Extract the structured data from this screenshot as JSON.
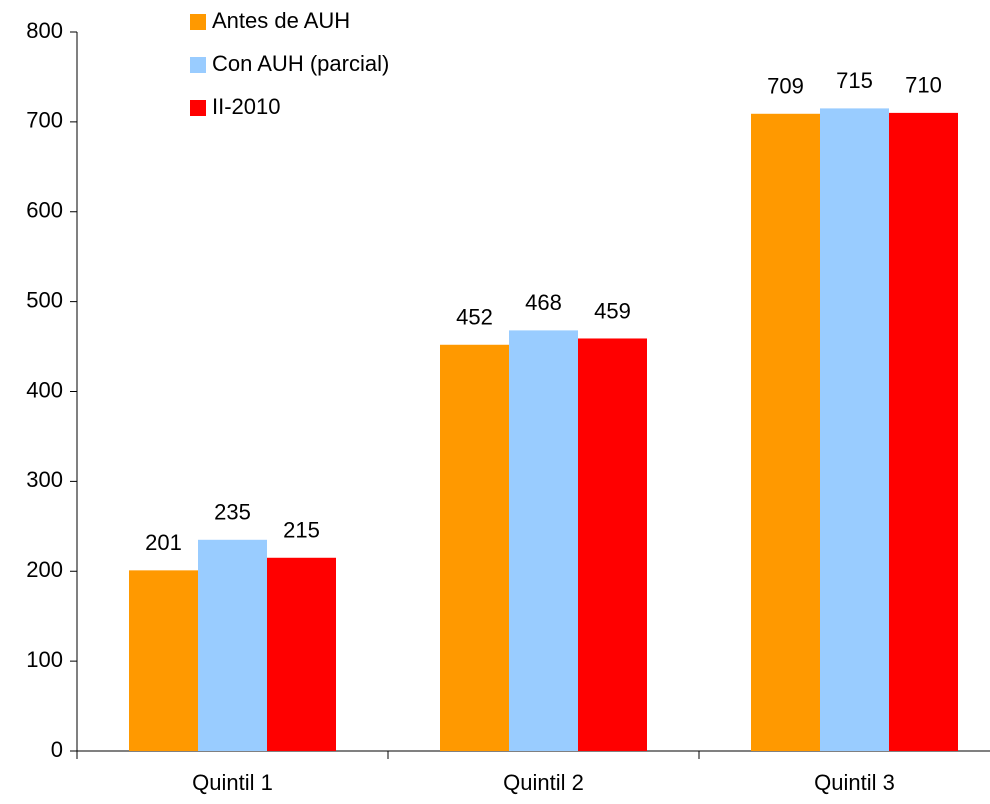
{
  "chart_data": {
    "type": "bar",
    "categories": [
      "Quintil 1",
      "Quintil 2",
      "Quintil 3"
    ],
    "series": [
      {
        "name": "Antes de AUH",
        "color": "#ff9900",
        "values": [
          201,
          452,
          709
        ]
      },
      {
        "name": "Con AUH (parcial)",
        "color": "#99ccff",
        "values": [
          235,
          468,
          715
        ]
      },
      {
        "name": "II-2010",
        "color": "#ff0000",
        "values": [
          215,
          459,
          710
        ]
      }
    ],
    "ylim": [
      0,
      800
    ],
    "yticks": [
      0,
      100,
      200,
      300,
      400,
      500,
      600,
      700,
      800
    ],
    "grid": false,
    "legend": "top-left"
  }
}
